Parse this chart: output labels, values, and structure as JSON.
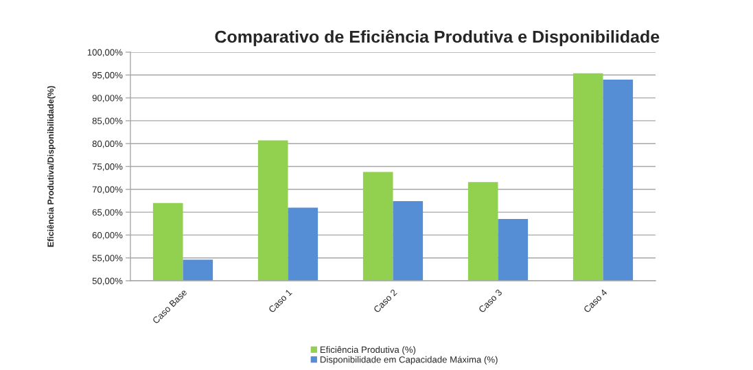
{
  "chart_data": {
    "type": "bar",
    "title": "Comparativo de Eficiência Produtiva e Disponibilidade",
    "ylabel": "Eficiência Produtiva/Disponibilidade(%)",
    "categories": [
      "Caso Base",
      "Caso 1",
      "Caso 2",
      "Caso 3",
      "Caso 4"
    ],
    "series": [
      {
        "name": "Eficiência Produtiva (%)",
        "color": "#92d050",
        "values": [
          67.0,
          80.7,
          73.8,
          71.6,
          95.4
        ]
      },
      {
        "name": "Disponibilidade em Capacidade Máxima (%)",
        "color": "#558ed5",
        "values": [
          54.6,
          66.0,
          67.4,
          63.5,
          94.0
        ]
      }
    ],
    "ylim": [
      50,
      100
    ],
    "yticks": [
      {
        "value": 50,
        "label": "50,00%"
      },
      {
        "value": 55,
        "label": "55,00%"
      },
      {
        "value": 60,
        "label": "60,00%"
      },
      {
        "value": 65,
        "label": "65,00%"
      },
      {
        "value": 70,
        "label": "70,00%"
      },
      {
        "value": 75,
        "label": "75,00%"
      },
      {
        "value": 80,
        "label": "80,00%"
      },
      {
        "value": 85,
        "label": "85,00%"
      },
      {
        "value": 90,
        "label": "90,00%"
      },
      {
        "value": 95,
        "label": "95,00%"
      },
      {
        "value": 100,
        "label": "100,00%"
      }
    ],
    "grid": "y",
    "legend": "bottom"
  }
}
